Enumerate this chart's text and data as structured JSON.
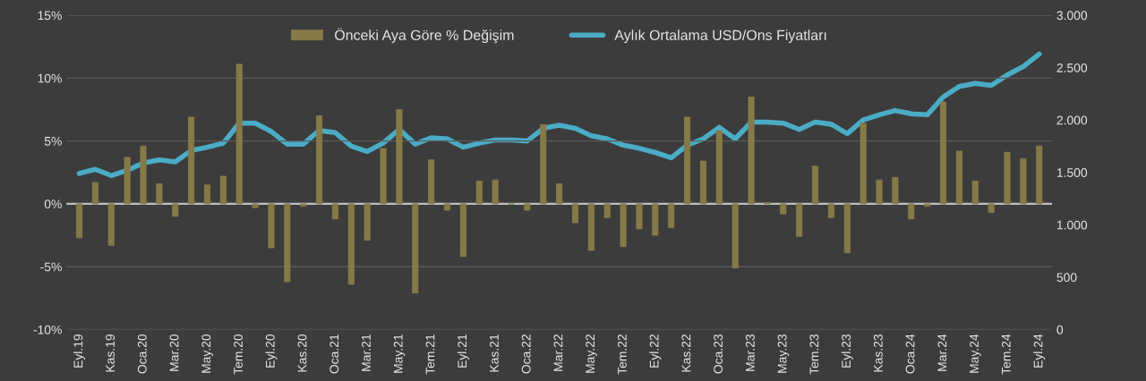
{
  "chart_data": {
    "type": "bar",
    "categories": [
      "Eyl.19",
      null,
      "Kas.19",
      null,
      "Oca.20",
      null,
      "Mar.20",
      null,
      "May.20",
      null,
      "Tem.20",
      null,
      "Eyl.20",
      null,
      "Kas.20",
      null,
      "Oca.21",
      null,
      "Mar.21",
      null,
      "May.21",
      null,
      "Tem.21",
      null,
      "Eyl.21",
      null,
      "Kas.21",
      null,
      "Oca.22",
      null,
      "Mar.22",
      null,
      "May.22",
      null,
      "Tem.22",
      null,
      "Eyl.22",
      null,
      "Kas.22",
      null,
      "Oca.23",
      null,
      "Mar.23",
      null,
      "May.23",
      null,
      "Tem.23",
      null,
      "Eyl.23",
      null,
      "Kas.23",
      null,
      "Oca.24",
      null,
      "Mar.24",
      null,
      "May.24",
      null,
      "Tem.24",
      null,
      "Eyl.24"
    ],
    "series": [
      {
        "name": "Önceki Aya Göre % Değişim",
        "color": "#857a48",
        "values": [
          -2.7,
          1.7,
          -3.3,
          3.7,
          4.6,
          1.6,
          -1.0,
          6.9,
          1.5,
          2.2,
          11.1,
          -0.3,
          -3.5,
          -6.2,
          -0.2,
          7.0,
          -1.2,
          -6.4,
          -2.9,
          4.4,
          7.5,
          -7.1,
          3.5,
          -0.5,
          -4.2,
          1.8,
          1.9,
          0.0,
          -0.5,
          6.3,
          1.6,
          -1.5,
          -3.7,
          -1.1,
          -3.4,
          -2.0,
          -2.5,
          -1.9,
          6.9,
          3.4,
          5.8,
          -5.1,
          8.5,
          0.1,
          -0.8,
          -2.6,
          3.0,
          -1.1,
          -3.9,
          6.4,
          1.9,
          2.1,
          -1.2,
          -0.2,
          8.1,
          4.2,
          1.8,
          -0.7,
          4.1,
          3.6,
          4.6
        ]
      },
      {
        "name": "Aylık Ortalama USD/Ons Fiyatları",
        "type": "line",
        "axis": "y2",
        "color": "#4bacc6",
        "values": [
          1490,
          1530,
          1470,
          1520,
          1590,
          1620,
          1600,
          1710,
          1740,
          1780,
          1970,
          1970,
          1890,
          1770,
          1770,
          1900,
          1880,
          1750,
          1700,
          1780,
          1910,
          1770,
          1830,
          1820,
          1740,
          1780,
          1810,
          1810,
          1800,
          1920,
          1950,
          1920,
          1850,
          1820,
          1760,
          1730,
          1690,
          1640,
          1760,
          1820,
          1930,
          1820,
          1980,
          1980,
          1970,
          1910,
          1980,
          1960,
          1870,
          2000,
          2050,
          2090,
          2060,
          2050,
          2220,
          2320,
          2350,
          2330,
          2430,
          2510,
          2630
        ]
      }
    ],
    "ylim": [
      -10,
      15
    ],
    "yticks": [
      {
        "value": -10,
        "label": "-10%"
      },
      {
        "value": -5,
        "label": "-5%"
      },
      {
        "value": 0,
        "label": "0%"
      },
      {
        "value": 5,
        "label": "5%"
      },
      {
        "value": 10,
        "label": "10%"
      },
      {
        "value": 15,
        "label": "15%"
      }
    ],
    "y2lim": [
      0,
      3000
    ],
    "y2ticks": [
      0,
      500,
      {
        "value": 1000,
        "label": "1.000"
      },
      {
        "value": 1500,
        "label": "1.500"
      },
      {
        "value": 2000,
        "label": "2.000"
      },
      {
        "value": 2500,
        "label": "2.500"
      },
      {
        "value": 3000,
        "label": "3.000"
      }
    ],
    "grid": "y",
    "legend": "top",
    "line_style": "solid",
    "marker": "none"
  }
}
